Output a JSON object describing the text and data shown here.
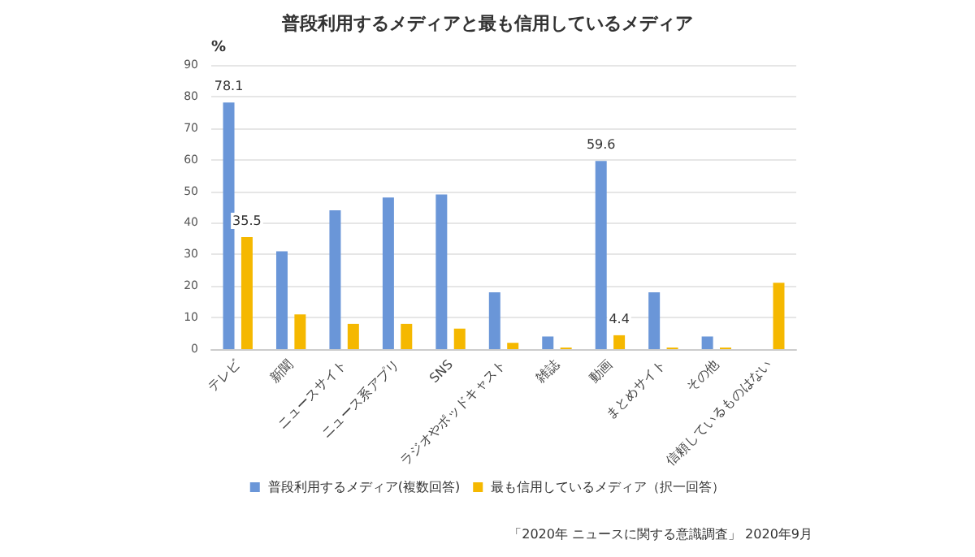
{
  "chart_data": {
    "type": "bar",
    "title": "普段利用するメディアと最も信用しているメディア",
    "ylabel": "%",
    "categories": [
      "テレビ",
      "新聞",
      "ニュースサイト",
      "ニュース系アプリ",
      "SNS",
      "ラジオやポッドキャスト",
      "雑誌",
      "動画",
      "まとめサイト",
      "その他",
      "信頼しているものはない"
    ],
    "series": [
      {
        "name": "普段利用するメディア(複数回答)",
        "color": "#6a96d8",
        "values": [
          78.1,
          31,
          44,
          48,
          49,
          18,
          4,
          59.6,
          18,
          4,
          null
        ],
        "value_labels": [
          "78.1",
          null,
          null,
          null,
          null,
          null,
          null,
          "59.6",
          null,
          null,
          null
        ]
      },
      {
        "name": "最も信用しているメディア（択一回答）",
        "color": "#f5b800",
        "values": [
          35.5,
          11,
          8,
          8,
          6.5,
          2,
          0.5,
          4.4,
          0.5,
          0.5,
          21
        ],
        "value_labels": [
          "35.5",
          null,
          null,
          null,
          null,
          null,
          null,
          "4.4",
          null,
          null,
          null
        ]
      }
    ],
    "ylim": [
      0,
      90
    ],
    "yticks": [
      0,
      10,
      20,
      30,
      40,
      50,
      60,
      70,
      80,
      90
    ],
    "grid": "y",
    "legend": "bottom",
    "annotations": [
      "「2020年 ニュースに関する意識調査」 2020年9月"
    ]
  }
}
